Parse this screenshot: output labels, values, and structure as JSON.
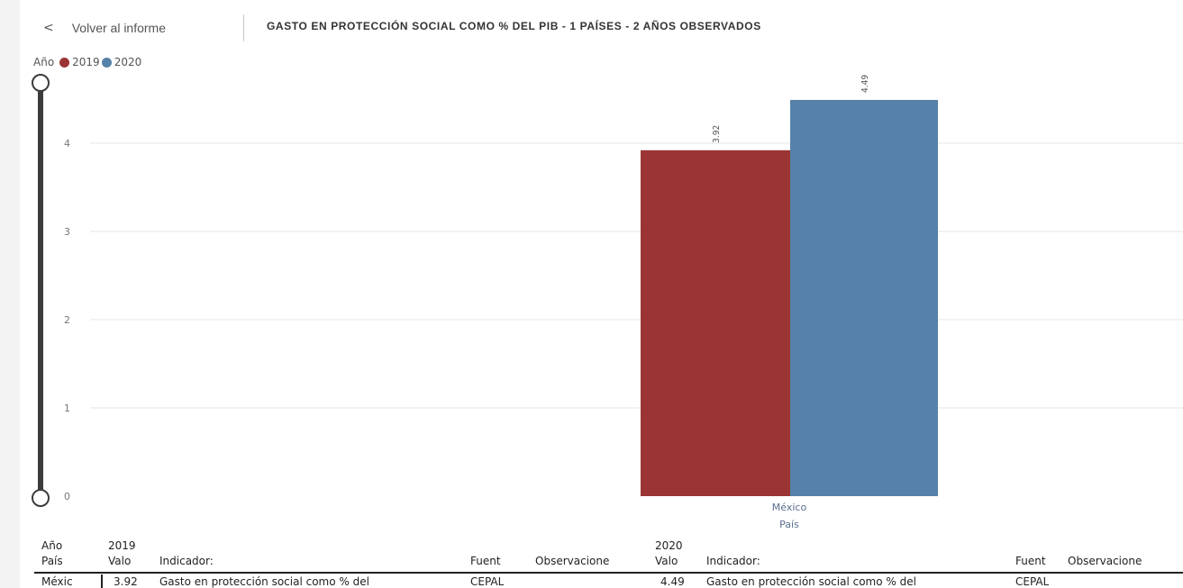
{
  "header": {
    "back_chevron": "<",
    "back_label": "Volver al informe",
    "title": "GASTO EN PROTECCIÓN SOCIAL COMO % DEL PIB - 1 PAÍSES - 2 AÑOS OBSERVADOS"
  },
  "legend": {
    "title": "Año",
    "items": [
      {
        "label": "2019",
        "color": "#9b3535"
      },
      {
        "label": "2020",
        "color": "#5681a9"
      }
    ]
  },
  "chart_data": {
    "type": "bar",
    "categories": [
      "México"
    ],
    "xlabel": "País",
    "ylabel": "",
    "ylim": [
      0,
      4.5
    ],
    "yticks": [
      "0",
      "1",
      "2",
      "3",
      "4"
    ],
    "series": [
      {
        "name": "2019",
        "values": [
          3.92
        ],
        "labels": [
          "3.92"
        ],
        "color": "#9b3535"
      },
      {
        "name": "2020",
        "values": [
          4.49
        ],
        "labels": [
          "4.49"
        ],
        "color": "#5681a9"
      }
    ],
    "grid": true,
    "legend_placement": "top-left"
  },
  "table": {
    "headers_top": {
      "year": "Año",
      "y2019": "2019",
      "y2020": "2020"
    },
    "headers": {
      "pais": "País",
      "valor1": "Valo",
      "indicador1": "Indicador:",
      "fuente1": "Fuent",
      "obs1": "Observacione",
      "valor2": "Valo",
      "indicador2": "Indicador:",
      "fuente2": "Fuent",
      "obs2": "Observacione"
    },
    "row": {
      "pais": "Méxic",
      "valor1": "3.92",
      "indicador1": "Gasto en protección social como % del",
      "fuente1": "CEPAL",
      "valor2": "4.49",
      "indicador2": "Gasto en protección social como % del",
      "fuente2": "CEPAL"
    }
  }
}
